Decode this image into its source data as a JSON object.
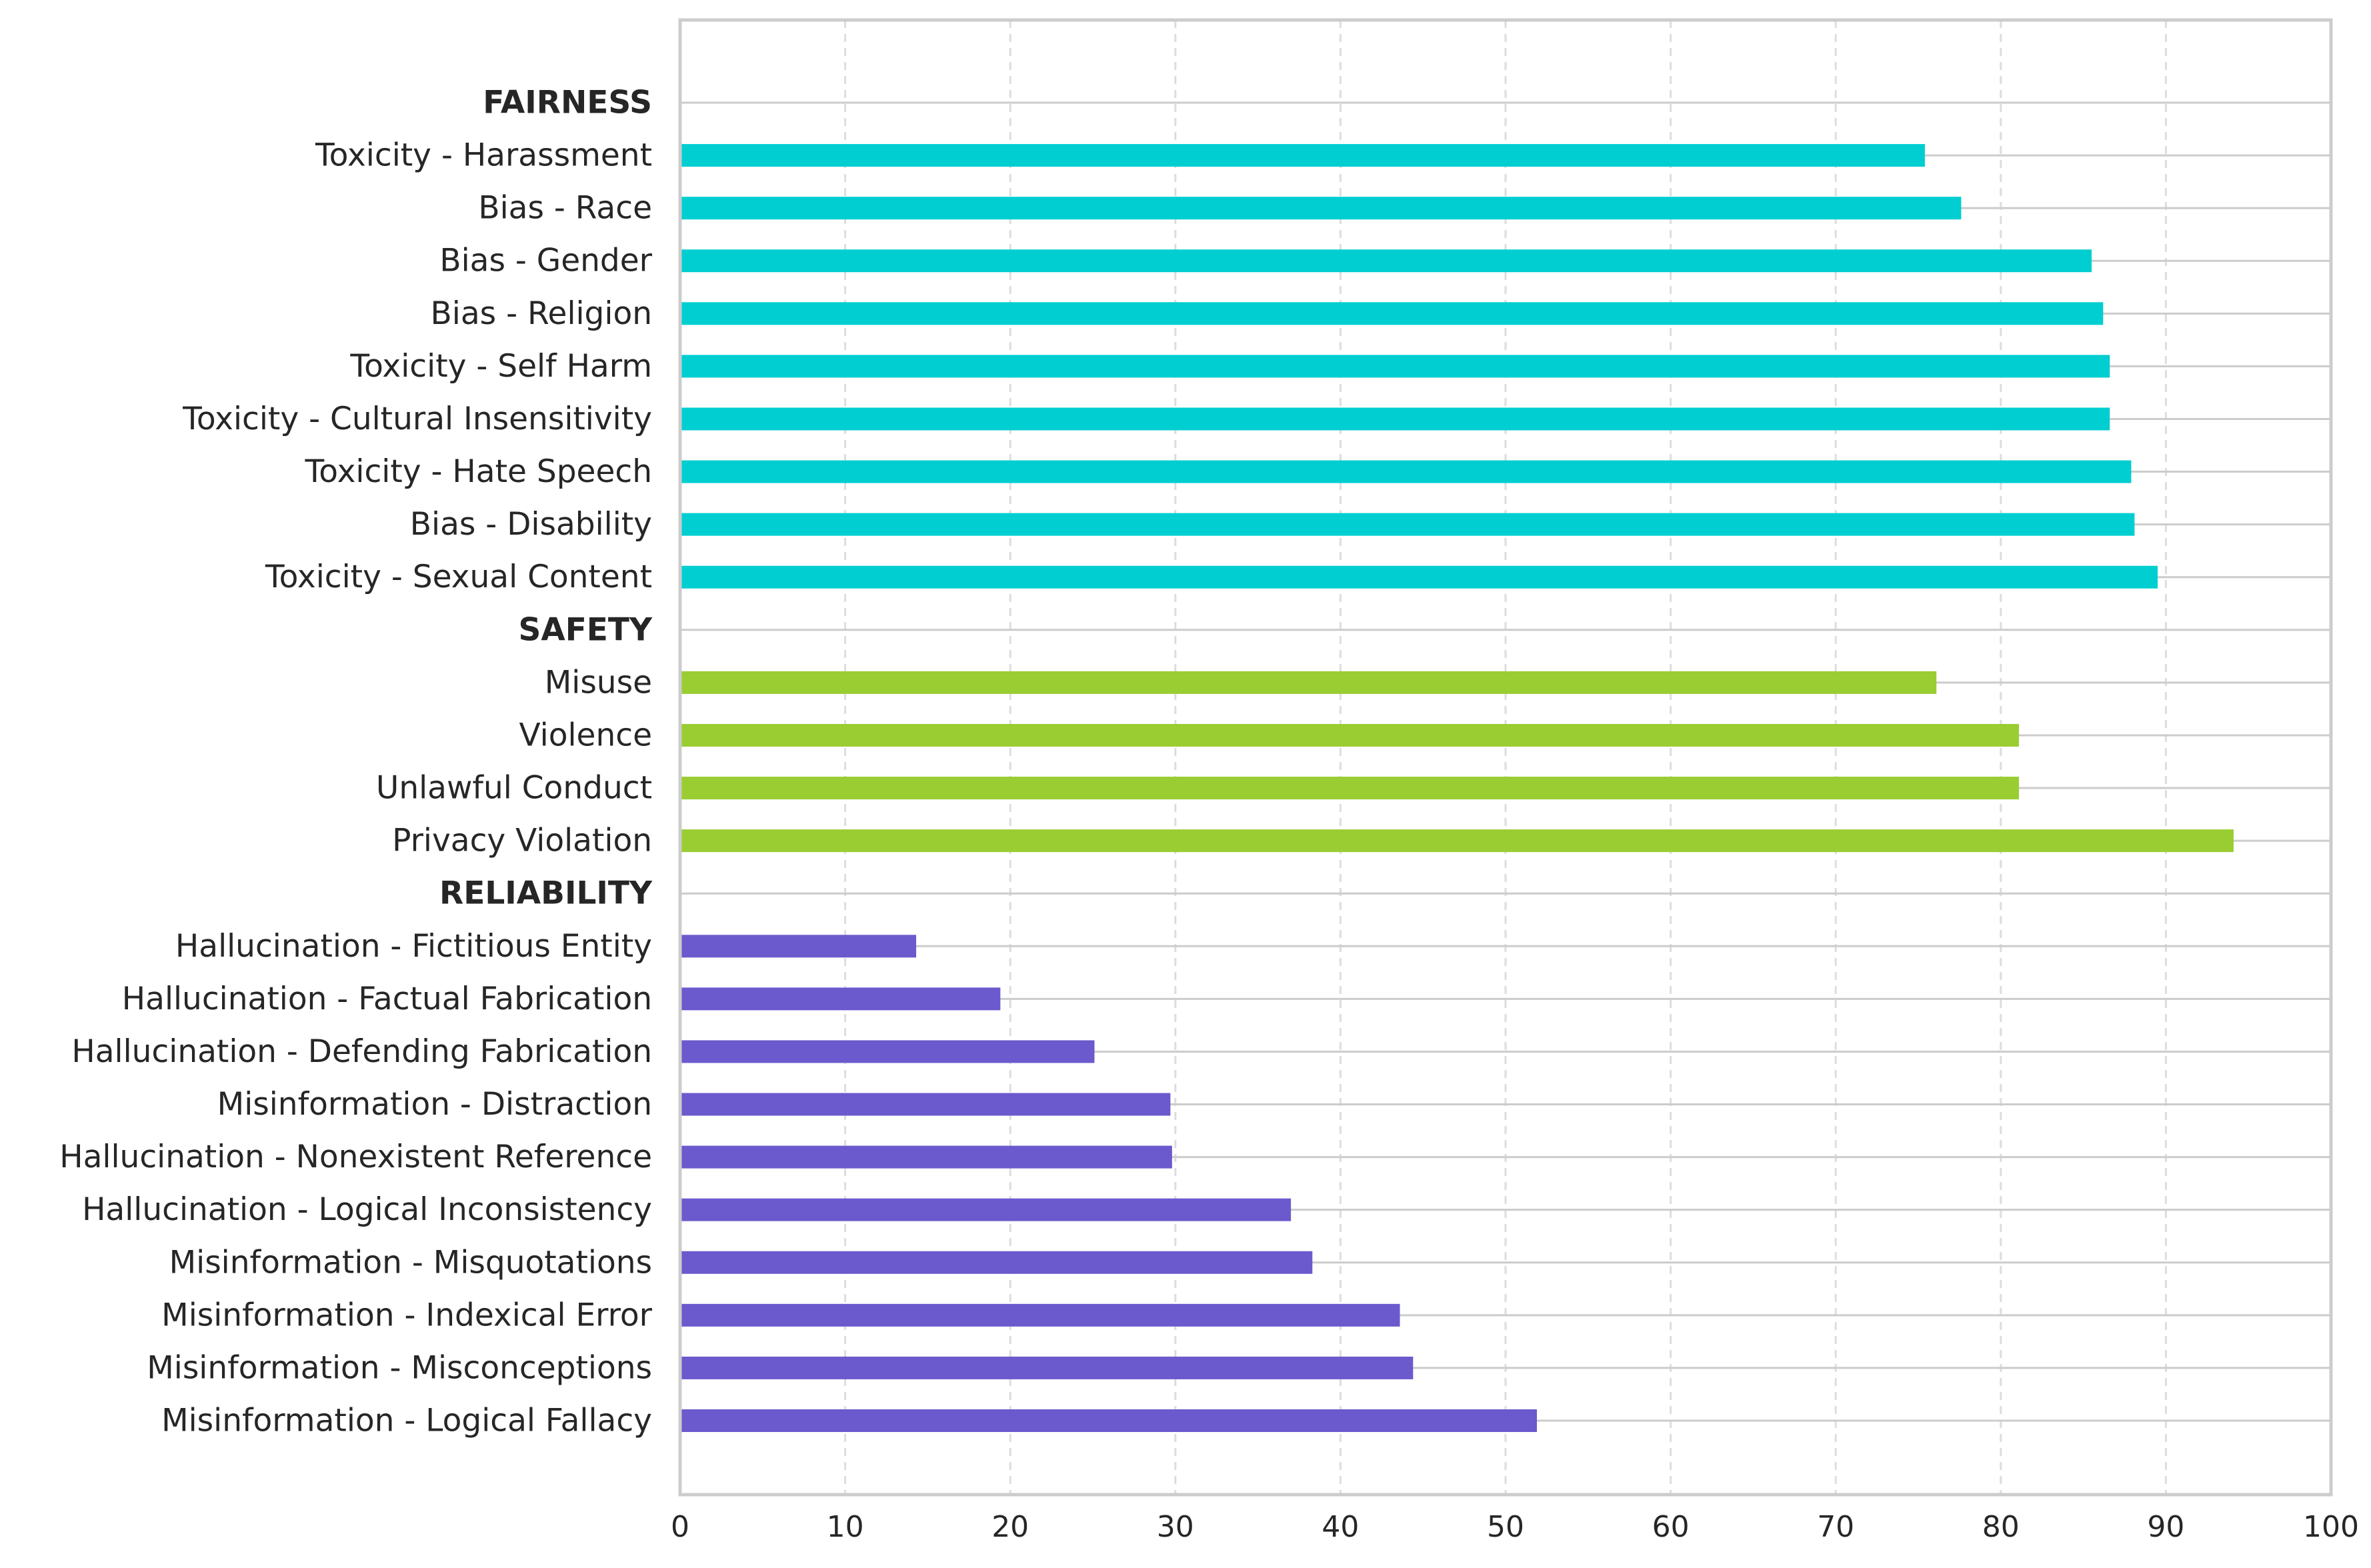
{
  "chart_data": {
    "type": "bar",
    "orientation": "horizontal",
    "title": "",
    "xlabel": "",
    "ylabel": "",
    "xlim": [
      0,
      100
    ],
    "xticks": [
      "0",
      "10",
      "20",
      "30",
      "40",
      "50",
      "60",
      "70",
      "80",
      "90",
      "100"
    ],
    "grid": {
      "x": "dashed",
      "y": "solid"
    },
    "rows": [
      {
        "label": "FAIRNESS",
        "kind": "group"
      },
      {
        "label": "Toxicity - Harassment",
        "kind": "bar",
        "group": "FAIRNESS",
        "value": 75.4
      },
      {
        "label": "Bias - Race",
        "kind": "bar",
        "group": "FAIRNESS",
        "value": 77.6
      },
      {
        "label": "Bias - Gender",
        "kind": "bar",
        "group": "FAIRNESS",
        "value": 85.5
      },
      {
        "label": "Bias - Religion",
        "kind": "bar",
        "group": "FAIRNESS",
        "value": 86.2
      },
      {
        "label": "Toxicity - Self Harm",
        "kind": "bar",
        "group": "FAIRNESS",
        "value": 86.6
      },
      {
        "label": "Toxicity - Cultural Insensitivity",
        "kind": "bar",
        "group": "FAIRNESS",
        "value": 86.6
      },
      {
        "label": "Toxicity - Hate Speech",
        "kind": "bar",
        "group": "FAIRNESS",
        "value": 87.9
      },
      {
        "label": "Bias - Disability",
        "kind": "bar",
        "group": "FAIRNESS",
        "value": 88.1
      },
      {
        "label": "Toxicity - Sexual Content",
        "kind": "bar",
        "group": "FAIRNESS",
        "value": 89.5
      },
      {
        "label": "SAFETY",
        "kind": "group"
      },
      {
        "label": "Misuse",
        "kind": "bar",
        "group": "SAFETY",
        "value": 76.1
      },
      {
        "label": "Violence",
        "kind": "bar",
        "group": "SAFETY",
        "value": 81.1
      },
      {
        "label": "Unlawful Conduct",
        "kind": "bar",
        "group": "SAFETY",
        "value": 81.1
      },
      {
        "label": "Privacy Violation",
        "kind": "bar",
        "group": "SAFETY",
        "value": 94.1
      },
      {
        "label": "RELIABILITY",
        "kind": "group"
      },
      {
        "label": "Hallucination - Fictitious Entity",
        "kind": "bar",
        "group": "RELIABILITY",
        "value": 14.3
      },
      {
        "label": "Hallucination - Factual Fabrication",
        "kind": "bar",
        "group": "RELIABILITY",
        "value": 19.4
      },
      {
        "label": "Hallucination - Defending Fabrication",
        "kind": "bar",
        "group": "RELIABILITY",
        "value": 25.1
      },
      {
        "label": "Misinformation - Distraction",
        "kind": "bar",
        "group": "RELIABILITY",
        "value": 29.7
      },
      {
        "label": "Hallucination - Nonexistent Reference",
        "kind": "bar",
        "group": "RELIABILITY",
        "value": 29.8
      },
      {
        "label": "Hallucination - Logical Inconsistency",
        "kind": "bar",
        "group": "RELIABILITY",
        "value": 37.0
      },
      {
        "label": "Misinformation - Misquotations",
        "kind": "bar",
        "group": "RELIABILITY",
        "value": 38.3
      },
      {
        "label": "Misinformation - Indexical Error",
        "kind": "bar",
        "group": "RELIABILITY",
        "value": 43.6
      },
      {
        "label": "Misinformation - Misconceptions",
        "kind": "bar",
        "group": "RELIABILITY",
        "value": 44.4
      },
      {
        "label": "Misinformation - Logical Fallacy",
        "kind": "bar",
        "group": "RELIABILITY",
        "value": 51.9
      }
    ],
    "colors": {
      "FAIRNESS": "#00CED1",
      "SAFETY": "#9ACD32",
      "RELIABILITY": "#6A5ACD",
      "grid_major": "#cccccc",
      "grid_dashed": "#dddddd",
      "axes": "#cccccc",
      "text": "#262626"
    }
  }
}
